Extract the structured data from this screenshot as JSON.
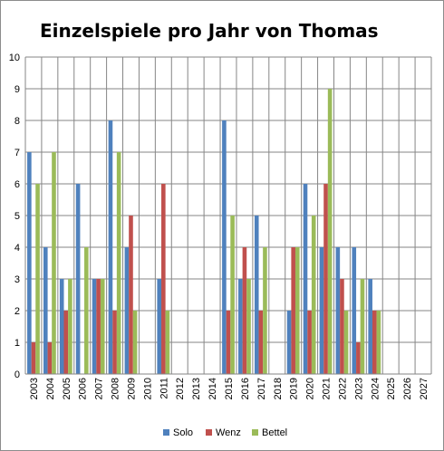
{
  "chart_data": {
    "type": "bar",
    "title": "Einzelspiele pro Jahr von Thomas",
    "xlabel": "",
    "ylabel": "",
    "ylim": [
      0,
      10
    ],
    "yticks": [
      "0",
      "1",
      "2",
      "3",
      "4",
      "5",
      "6",
      "7",
      "8",
      "9",
      "10"
    ],
    "grid": true,
    "legend_position": "bottom",
    "categories": [
      "2003",
      "2004",
      "2005",
      "2006",
      "2007",
      "2008",
      "2009",
      "2010",
      "2011",
      "2012",
      "2013",
      "2014",
      "2015",
      "2016",
      "2017",
      "2018",
      "2019",
      "2020",
      "2021",
      "2022",
      "2023",
      "2024",
      "2025",
      "2026",
      "2027"
    ],
    "series": [
      {
        "name": "Solo",
        "color": "#4f81bd",
        "values": [
          7,
          4,
          3,
          6,
          3,
          8,
          4,
          null,
          3,
          null,
          null,
          null,
          8,
          3,
          5,
          null,
          2,
          6,
          4,
          4,
          4,
          3,
          null,
          null,
          null
        ]
      },
      {
        "name": "Wenz",
        "color": "#c0504d",
        "values": [
          1,
          1,
          2,
          null,
          3,
          2,
          5,
          null,
          6,
          null,
          null,
          null,
          2,
          4,
          2,
          null,
          4,
          2,
          6,
          3,
          1,
          2,
          null,
          null,
          null
        ]
      },
      {
        "name": "Bettel",
        "color": "#9bbb59",
        "values": [
          6,
          7,
          3,
          4,
          3,
          7,
          2,
          null,
          2,
          null,
          null,
          null,
          5,
          3,
          4,
          null,
          4,
          5,
          9,
          2,
          3,
          2,
          null,
          null,
          null
        ]
      }
    ]
  }
}
